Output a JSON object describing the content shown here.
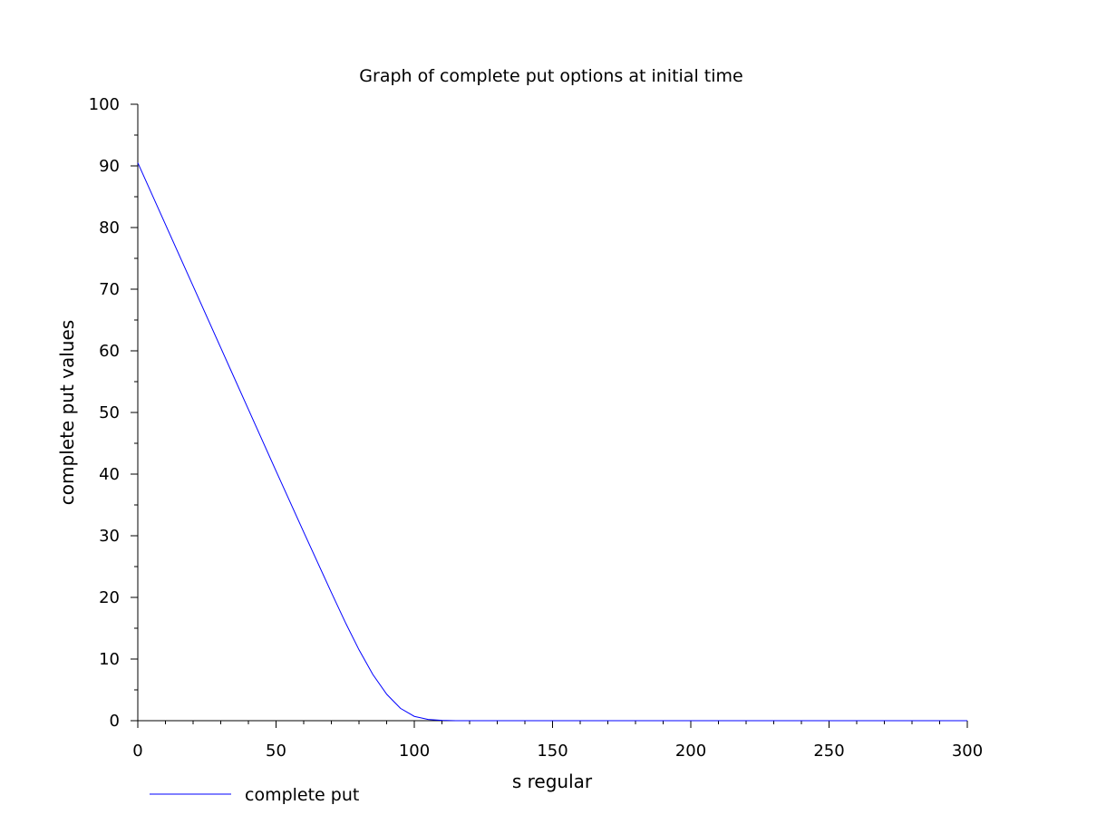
{
  "chart_data": {
    "type": "line",
    "title": "Graph of complete put options at initial time",
    "xlabel": "s regular",
    "ylabel": "complete put values",
    "xlim": [
      0,
      300
    ],
    "ylim": [
      0,
      100
    ],
    "x_ticks": [
      0,
      50,
      100,
      150,
      200,
      250,
      300
    ],
    "y_ticks": [
      0,
      10,
      20,
      30,
      40,
      50,
      60,
      70,
      80,
      90,
      100
    ],
    "x_tick_labels": [
      "0",
      "50",
      "100",
      "150",
      "200",
      "250",
      "300"
    ],
    "y_tick_labels": [
      "0",
      "10",
      "20",
      "30",
      "40",
      "50",
      "60",
      "70",
      "80",
      "90",
      "100"
    ],
    "grid": false,
    "legend_position": "bottom-left",
    "series": [
      {
        "name": "complete put",
        "color": "#0000ff",
        "x": [
          0,
          10,
          20,
          30,
          40,
          50,
          60,
          70,
          75,
          80,
          85,
          90,
          95,
          100,
          105,
          110,
          115,
          120,
          150,
          200,
          250,
          300
        ],
        "y": [
          90.5,
          80.5,
          70.5,
          60.5,
          50.5,
          40.5,
          30.6,
          20.8,
          16.0,
          11.5,
          7.5,
          4.3,
          2.0,
          0.7,
          0.2,
          0.05,
          0.0,
          0.0,
          0.0,
          0.0,
          0.0,
          0.0
        ]
      }
    ]
  }
}
